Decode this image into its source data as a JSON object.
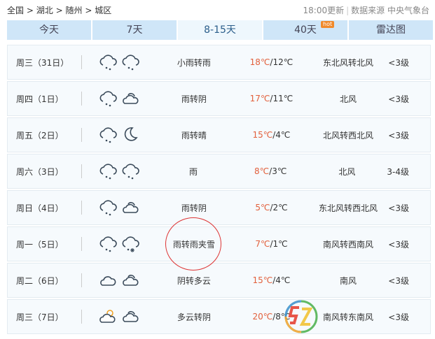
{
  "breadcrumb": [
    "全国",
    "湖北",
    "随州",
    "城区"
  ],
  "breadcrumb_sep": ">",
  "update": "18:00更新",
  "source": "数据来源 中央气象台",
  "tabs": [
    {
      "label": "今天"
    },
    {
      "label": "7天"
    },
    {
      "label": "8-15天",
      "active": true
    },
    {
      "label": "40天",
      "badge": "hot"
    },
    {
      "label": "雷达图"
    }
  ],
  "accent": "#e2603c",
  "days": [
    {
      "day": "周三（31日）",
      "icons": [
        "rain-cloud-icon",
        "light-rain-cloud-icon"
      ],
      "desc": "小雨转雨",
      "hi": "18℃",
      "lo": "/12℃",
      "wind": "东北风转北风",
      "level": "<3级"
    },
    {
      "day": "周四（1日）",
      "icons": [
        "rain-cloud-icon",
        "partly-cloudy-icon"
      ],
      "desc": "雨转阴",
      "hi": "17℃",
      "lo": "/11℃",
      "wind": "北风",
      "level": "<3级"
    },
    {
      "day": "周五（2日）",
      "icons": [
        "rain-cloud-icon",
        "moon-icon"
      ],
      "desc": "雨转晴",
      "hi": "15℃",
      "lo": "/4℃",
      "wind": "北风转西北风",
      "level": "<3级"
    },
    {
      "day": "周六（3日）",
      "icons": [
        "rain-cloud-icon",
        "rain-cloud-icon"
      ],
      "desc": "雨",
      "hi": "8℃",
      "lo": "/3℃",
      "wind": "北风",
      "level": "3-4级"
    },
    {
      "day": "周日（4日）",
      "icons": [
        "rain-cloud-icon",
        "partly-cloudy-icon"
      ],
      "desc": "雨转阴",
      "hi": "5℃",
      "lo": "/2℃",
      "wind": "东北风转西北风",
      "level": "<3级"
    },
    {
      "day": "周一（5日）",
      "icons": [
        "rain-cloud-icon",
        "sleet-cloud-icon"
      ],
      "desc": "雨转雨夹雪",
      "hi": "7℃",
      "lo": "/1℃",
      "wind": "南风转西南风",
      "level": "<3级"
    },
    {
      "day": "周二（6日）",
      "icons": [
        "cloud-icon",
        "partly-cloudy-icon"
      ],
      "desc": "阴转多云",
      "hi": "15℃",
      "lo": "/4℃",
      "wind": "南风",
      "level": "<3级"
    },
    {
      "day": "周三（7日）",
      "icons": [
        "sun-cloud-icon",
        "partly-cloudy-icon"
      ],
      "desc": "多云转阴",
      "hi": "20℃",
      "lo": "/8℃",
      "wind": "南风转东南风",
      "level": "<3级"
    }
  ],
  "watermark": "SZ"
}
